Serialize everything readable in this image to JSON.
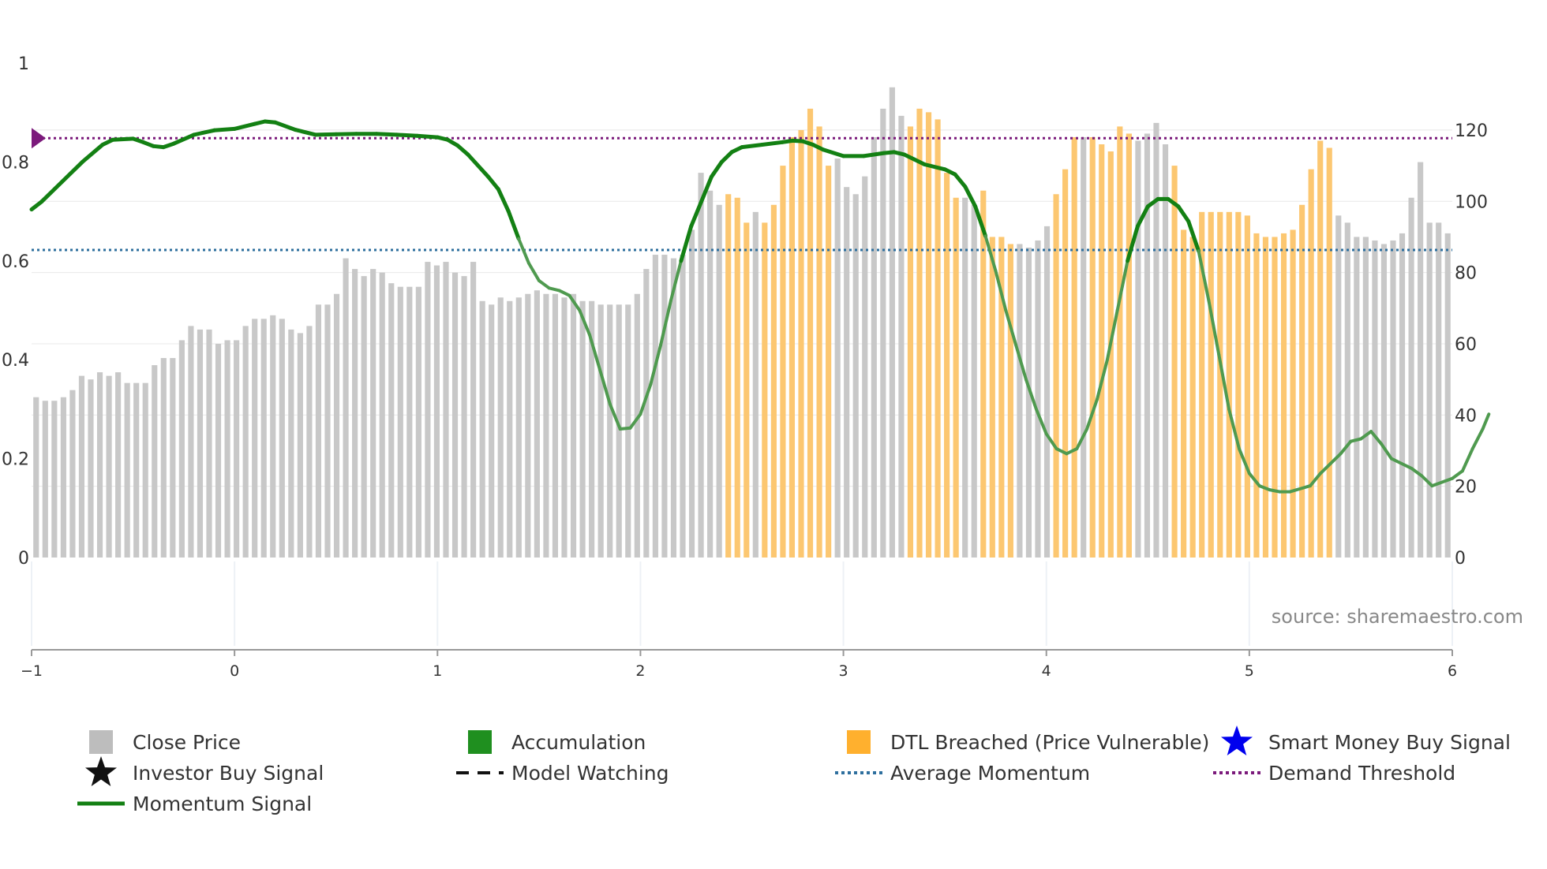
{
  "chart_data": {
    "type": "bar",
    "source": "source: sharemaestro.com",
    "left_axis": {
      "range": [
        0,
        1
      ],
      "ticks": [
        0,
        0.2,
        0.4,
        0.6,
        0.8,
        1
      ],
      "tick_labels": [
        "0",
        "0.2",
        "0.4",
        "0.6",
        "0.8",
        "1"
      ]
    },
    "right_axis": {
      "range": [
        0,
        138.8
      ],
      "ticks": [
        0,
        20,
        40,
        60,
        80,
        100,
        120
      ],
      "tick_labels": [
        "0",
        "20",
        "40",
        "60",
        "80",
        "100",
        "120"
      ]
    },
    "x_axis": {
      "range": [
        -1,
        6
      ],
      "ticks": [
        -1,
        0,
        1,
        2,
        3,
        4,
        5,
        6
      ],
      "tick_labels": [
        "−1",
        "0",
        "1",
        "2",
        "3",
        "4",
        "5",
        "6"
      ]
    },
    "prices": [
      45,
      44,
      44,
      45,
      47,
      51,
      50,
      52,
      51,
      52,
      49,
      49,
      49,
      54,
      56,
      56,
      61,
      65,
      64,
      64,
      60,
      61,
      61,
      65,
      67,
      67,
      68,
      67,
      64,
      63,
      65,
      71,
      71,
      74,
      84,
      81,
      79,
      81,
      80,
      77,
      76,
      76,
      76,
      83,
      82,
      83,
      80,
      79,
      83,
      72,
      71,
      73,
      72,
      73,
      74,
      75,
      74,
      74,
      73,
      74,
      72,
      72,
      71,
      71,
      71,
      71,
      74,
      81,
      85,
      85,
      84,
      85,
      92,
      108,
      103,
      99,
      102,
      101,
      94,
      97,
      94,
      99,
      110,
      118,
      120,
      126,
      121,
      110,
      112,
      104,
      102,
      107,
      118,
      126,
      132,
      124,
      121,
      126,
      125,
      123,
      108,
      101,
      101,
      99,
      103,
      90,
      90,
      88,
      88,
      87,
      89,
      93,
      102,
      109,
      118,
      118,
      118,
      116,
      114,
      121,
      119,
      117,
      119,
      122,
      116,
      110,
      92,
      90,
      97,
      97,
      97,
      97,
      97,
      96,
      91,
      90,
      90,
      91,
      92,
      99,
      109,
      117,
      115,
      96,
      94,
      90,
      90,
      89,
      88,
      89,
      91,
      101,
      111,
      94,
      94,
      91
    ],
    "breached_indices": [
      76,
      77,
      78,
      80,
      81,
      82,
      83,
      84,
      85,
      86,
      87,
      96,
      97,
      98,
      99,
      100,
      101,
      104,
      105,
      106,
      107,
      112,
      113,
      114,
      116,
      117,
      118,
      119,
      120,
      125,
      126,
      127,
      128,
      129,
      130,
      131,
      132,
      133,
      134,
      135,
      136,
      137,
      138,
      139,
      140,
      141,
      142
    ],
    "momentum": [
      [
        -1,
        0.704
      ],
      [
        -0.95,
        0.72
      ],
      [
        -0.85,
        0.76
      ],
      [
        -0.75,
        0.8
      ],
      [
        -0.65,
        0.835
      ],
      [
        -0.6,
        0.845
      ],
      [
        -0.5,
        0.847
      ],
      [
        -0.45,
        0.84
      ],
      [
        -0.4,
        0.832
      ],
      [
        -0.35,
        0.83
      ],
      [
        -0.3,
        0.837
      ],
      [
        -0.2,
        0.855
      ],
      [
        -0.1,
        0.864
      ],
      [
        0,
        0.867
      ],
      [
        0.1,
        0.877
      ],
      [
        0.15,
        0.882
      ],
      [
        0.2,
        0.88
      ],
      [
        0.3,
        0.865
      ],
      [
        0.4,
        0.855
      ],
      [
        0.5,
        0.856
      ],
      [
        0.6,
        0.857
      ],
      [
        0.7,
        0.857
      ],
      [
        0.8,
        0.855
      ],
      [
        0.9,
        0.853
      ],
      [
        1,
        0.85
      ],
      [
        1.05,
        0.845
      ],
      [
        1.1,
        0.833
      ],
      [
        1.15,
        0.815
      ],
      [
        1.25,
        0.77
      ],
      [
        1.3,
        0.745
      ],
      [
        1.35,
        0.7
      ],
      [
        1.4,
        0.645
      ],
      [
        1.45,
        0.595
      ],
      [
        1.5,
        0.56
      ],
      [
        1.55,
        0.545
      ],
      [
        1.6,
        0.54
      ],
      [
        1.65,
        0.53
      ],
      [
        1.7,
        0.5
      ],
      [
        1.75,
        0.45
      ],
      [
        1.8,
        0.38
      ],
      [
        1.85,
        0.31
      ],
      [
        1.9,
        0.26
      ],
      [
        1.95,
        0.262
      ],
      [
        2.0,
        0.29
      ],
      [
        2.05,
        0.35
      ],
      [
        2.1,
        0.43
      ],
      [
        2.15,
        0.52
      ],
      [
        2.2,
        0.6
      ],
      [
        2.25,
        0.67
      ],
      [
        2.3,
        0.72
      ],
      [
        2.35,
        0.77
      ],
      [
        2.4,
        0.8
      ],
      [
        2.45,
        0.82
      ],
      [
        2.5,
        0.83
      ],
      [
        2.6,
        0.835
      ],
      [
        2.7,
        0.84
      ],
      [
        2.75,
        0.843
      ],
      [
        2.8,
        0.842
      ],
      [
        2.85,
        0.835
      ],
      [
        2.9,
        0.825
      ],
      [
        3.0,
        0.812
      ],
      [
        3.1,
        0.812
      ],
      [
        3.2,
        0.818
      ],
      [
        3.25,
        0.82
      ],
      [
        3.3,
        0.815
      ],
      [
        3.35,
        0.805
      ],
      [
        3.4,
        0.795
      ],
      [
        3.5,
        0.785
      ],
      [
        3.55,
        0.775
      ],
      [
        3.6,
        0.75
      ],
      [
        3.65,
        0.71
      ],
      [
        3.7,
        0.65
      ],
      [
        3.75,
        0.58
      ],
      [
        3.8,
        0.5
      ],
      [
        3.85,
        0.43
      ],
      [
        3.9,
        0.36
      ],
      [
        3.95,
        0.3
      ],
      [
        4.0,
        0.25
      ],
      [
        4.05,
        0.22
      ],
      [
        4.1,
        0.21
      ],
      [
        4.15,
        0.22
      ],
      [
        4.2,
        0.26
      ],
      [
        4.25,
        0.32
      ],
      [
        4.3,
        0.4
      ],
      [
        4.35,
        0.5
      ],
      [
        4.4,
        0.6
      ],
      [
        4.45,
        0.67
      ],
      [
        4.5,
        0.71
      ],
      [
        4.55,
        0.725
      ],
      [
        4.6,
        0.725
      ],
      [
        4.65,
        0.71
      ],
      [
        4.7,
        0.68
      ],
      [
        4.75,
        0.62
      ],
      [
        4.8,
        0.52
      ],
      [
        4.85,
        0.41
      ],
      [
        4.9,
        0.3
      ],
      [
        4.95,
        0.22
      ],
      [
        5.0,
        0.17
      ],
      [
        5.05,
        0.145
      ],
      [
        5.1,
        0.137
      ],
      [
        5.15,
        0.133
      ],
      [
        5.2,
        0.133
      ],
      [
        5.3,
        0.145
      ],
      [
        5.35,
        0.17
      ],
      [
        5.4,
        0.19
      ],
      [
        5.45,
        0.21
      ],
      [
        5.5,
        0.235
      ],
      [
        5.55,
        0.24
      ],
      [
        5.6,
        0.255
      ],
      [
        5.65,
        0.23
      ],
      [
        5.7,
        0.2
      ],
      [
        5.8,
        0.18
      ],
      [
        5.85,
        0.165
      ],
      [
        5.9,
        0.145
      ],
      [
        6.0,
        0.16
      ],
      [
        6.05,
        0.175
      ],
      [
        6.1,
        0.22
      ],
      [
        6.15,
        0.26
      ],
      [
        6.18,
        0.29
      ]
    ],
    "average_momentum": 0.622,
    "demand_threshold": 0.848,
    "legend": [
      {
        "label": "Close Price",
        "symbol": "square",
        "color": "#bdbdbd"
      },
      {
        "label": "Accumulation",
        "symbol": "square",
        "color": "#1f8f1f"
      },
      {
        "label": "DTL Breached (Price Vulnerable)",
        "symbol": "square",
        "color": "#ffb02e"
      },
      {
        "label": "Smart Money Buy Signal",
        "symbol": "star",
        "color": "#0000ee"
      },
      {
        "label": "Investor Buy Signal",
        "symbol": "star",
        "color": "#111111"
      },
      {
        "label": "Model Watching",
        "symbol": "dash",
        "color": "#111111"
      },
      {
        "label": "Average Momentum",
        "symbol": "dotted",
        "color": "#2e6f9e"
      },
      {
        "label": "Demand Threshold",
        "symbol": "dotted",
        "color": "#7b1a7b"
      },
      {
        "label": "Momentum Signal",
        "symbol": "line",
        "color": "#138013"
      }
    ],
    "colors": {
      "price_bar": "#c8c8c8",
      "breached_bar": "#fcc771",
      "momentum_strong": "#138013",
      "momentum_weak": "#4f9a4f",
      "average_line": "#2e6f9e",
      "threshold_line": "#7b1a7b",
      "marker": "#7b1a7b",
      "grid": "#e8e8e8",
      "axis": "#999999"
    }
  }
}
